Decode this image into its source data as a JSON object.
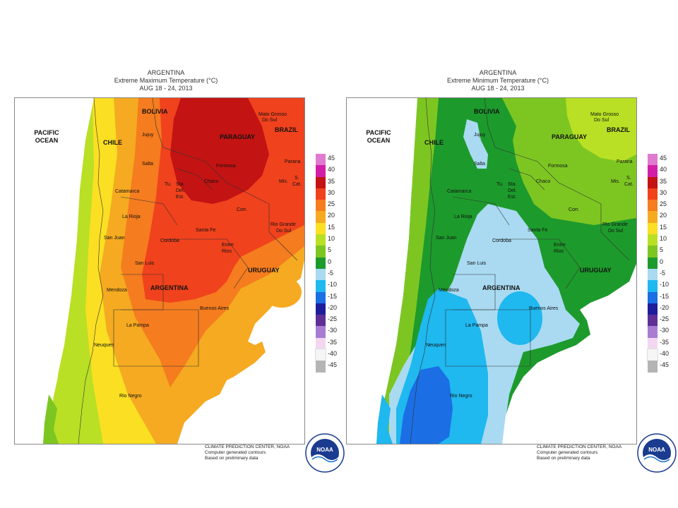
{
  "panels": [
    {
      "title": "ARGENTINA",
      "subtitle": "Extreme Maximum Temperature (°C)",
      "dates": "AUG 18 - 24, 2013",
      "legend": [
        {
          "label": "45",
          "color": "#e07ad0"
        },
        {
          "label": "40",
          "color": "#d21fa8"
        },
        {
          "label": "35",
          "color": "#c31313"
        },
        {
          "label": "30",
          "color": "#f0421d"
        },
        {
          "label": "25",
          "color": "#f57c1f"
        },
        {
          "label": "20",
          "color": "#f5aa21"
        },
        {
          "label": "15",
          "color": "#fadf23"
        },
        {
          "label": "10",
          "color": "#b9e024"
        },
        {
          "label": "5",
          "color": "#7dc622"
        },
        {
          "label": "0",
          "color": "#1d9a2c"
        },
        {
          "label": "-5",
          "color": "#a9daf1"
        },
        {
          "label": "-10",
          "color": "#1fb8ef"
        },
        {
          "label": "-15",
          "color": "#1b6ee4"
        },
        {
          "label": "-20",
          "color": "#1d1d9c"
        },
        {
          "label": "-25",
          "color": "#5f2f96"
        },
        {
          "label": "-30",
          "color": "#a97cd3"
        },
        {
          "label": "-35",
          "color": "#f3d7f1"
        },
        {
          "label": "-40",
          "color": "#f5f5f5"
        },
        {
          "label": "-45",
          "color": "#b4b4b4"
        }
      ],
      "footer": [
        "CLIMATE PREDICTION CENTER, NOAA",
        "Computer generated contours",
        "Based on preliminary data"
      ]
    },
    {
      "title": "ARGENTINA",
      "subtitle": "Extreme Minimum Temperature (°C)",
      "dates": "AUG 18 - 24, 2013",
      "legend": [
        {
          "label": "45",
          "color": "#e07ad0"
        },
        {
          "label": "40",
          "color": "#d21fa8"
        },
        {
          "label": "35",
          "color": "#c31313"
        },
        {
          "label": "30",
          "color": "#f0421d"
        },
        {
          "label": "25",
          "color": "#f57c1f"
        },
        {
          "label": "20",
          "color": "#f5aa21"
        },
        {
          "label": "15",
          "color": "#fadf23"
        },
        {
          "label": "10",
          "color": "#b9e024"
        },
        {
          "label": "5",
          "color": "#7dc622"
        },
        {
          "label": "0",
          "color": "#1d9a2c"
        },
        {
          "label": "-5",
          "color": "#a9daf1"
        },
        {
          "label": "-10",
          "color": "#1fb8ef"
        },
        {
          "label": "-15",
          "color": "#1b6ee4"
        },
        {
          "label": "-20",
          "color": "#1d1d9c"
        },
        {
          "label": "-25",
          "color": "#5f2f96"
        },
        {
          "label": "-30",
          "color": "#a97cd3"
        },
        {
          "label": "-35",
          "color": "#f3d7f1"
        },
        {
          "label": "-40",
          "color": "#f5f5f5"
        },
        {
          "label": "-45",
          "color": "#b4b4b4"
        }
      ],
      "footer": [
        "CLIMATE PREDICTION CENTER, NOAA",
        "Computer generated contours",
        "Based on preliminary data"
      ]
    }
  ],
  "map_labels": {
    "pacific_1": "PACIFIC",
    "pacific_2": "OCEAN",
    "bolivia": "BOLIVIA",
    "chile": "CHILE",
    "paraguay": "PARAGUAY",
    "brazil": "BRAZIL",
    "argentina": "ARGENTINA",
    "uruguay": "URUGUAY",
    "mato_1": "Mato Grosso",
    "mato_2": "Do Sul",
    "jujuy": "Jujuy",
    "salta": "Salta",
    "formosa": "Formosa",
    "parana": "Parana",
    "chaco": "Chaco",
    "tu": "Tu.",
    "sta": "Sta.",
    "del": "Del.",
    "est": "Est.",
    "mis": "Mis.",
    "scat_1": "S.",
    "scat_2": "Cat.",
    "catamarca": "Catamarca",
    "la_rioja": "La Rioja",
    "corr": "Corr.",
    "rio_grande_1": "Rio Grande",
    "rio_grande_2": "Do Sul",
    "santa_fe": "Santa Fe",
    "san_juan": "San Juan",
    "cordoba": "Cordoba",
    "entre_1": "Entre",
    "entre_2": "Rios",
    "san_luis": "San Luis",
    "mendoza": "Mendoza",
    "buenos_aires": "Buenos Aires",
    "la_pampa": "La Pampa",
    "neuquen": "Neuquen",
    "rio_negro": "Rio Negro"
  },
  "logo": {
    "text": "NOAA",
    "colors": {
      "ring": "#1a3b8f",
      "wave": "#1d72c9"
    }
  }
}
